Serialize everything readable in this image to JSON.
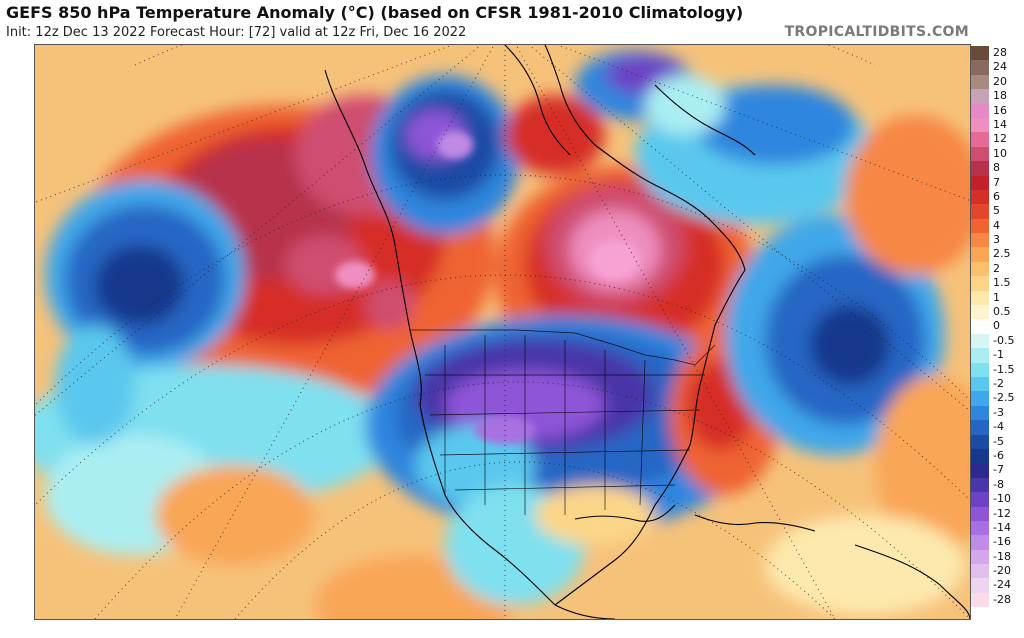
{
  "header": {
    "title": "GEFS 850 hPa Temperature Anomaly (°C) (based on CFSR 1981-2010 Climatology)",
    "subtitle": "Init: 12z Dec 13 2022   Forecast Hour: [72]   valid at 12z Fri, Dec 16 2022",
    "brand": "TROPICALTIDBITS.COM"
  },
  "colorbar": {
    "levels": [
      {
        "label": "28",
        "color": "#6b4a3a"
      },
      {
        "label": "24",
        "color": "#8a6a5e"
      },
      {
        "label": "20",
        "color": "#a88a80"
      },
      {
        "label": "18",
        "color": "#c7a3b8"
      },
      {
        "label": "16",
        "color": "#e48ac9"
      },
      {
        "label": "14",
        "color": "#ef8fbf"
      },
      {
        "label": "12",
        "color": "#e56a98"
      },
      {
        "label": "10",
        "color": "#cf4d70"
      },
      {
        "label": "8",
        "color": "#b8324c"
      },
      {
        "label": "7",
        "color": "#c4202c"
      },
      {
        "label": "6",
        "color": "#d62f27"
      },
      {
        "label": "5",
        "color": "#e4462a"
      },
      {
        "label": "4",
        "color": "#ef6430"
      },
      {
        "label": "3",
        "color": "#f78745"
      },
      {
        "label": "2.5",
        "color": "#f9a657"
      },
      {
        "label": "2",
        "color": "#fbc06c"
      },
      {
        "label": "1.5",
        "color": "#fcd688"
      },
      {
        "label": "1",
        "color": "#fde9ad"
      },
      {
        "label": "0.5",
        "color": "#fff4d0"
      },
      {
        "label": "0",
        "color": "#ffffff"
      },
      {
        "label": "-0.5",
        "color": "#d7f5f5"
      },
      {
        "label": "-1",
        "color": "#aaeef2"
      },
      {
        "label": "-1.5",
        "color": "#7fe0ef"
      },
      {
        "label": "-2",
        "color": "#5ac8ee"
      },
      {
        "label": "-2.5",
        "color": "#3fa7ea"
      },
      {
        "label": "-3",
        "color": "#2e86de"
      },
      {
        "label": "-4",
        "color": "#2566c5"
      },
      {
        "label": "-5",
        "color": "#1c4ba6"
      },
      {
        "label": "-6",
        "color": "#17388c"
      },
      {
        "label": "-7",
        "color": "#2b2b8f"
      },
      {
        "label": "-8",
        "color": "#4a36a8"
      },
      {
        "label": "-10",
        "color": "#6c43c6"
      },
      {
        "label": "-12",
        "color": "#8e55d8"
      },
      {
        "label": "-14",
        "color": "#a86fe0"
      },
      {
        "label": "-16",
        "color": "#c08ae6"
      },
      {
        "label": "-18",
        "color": "#d4a6ea"
      },
      {
        "label": "-20",
        "color": "#e3bfee"
      },
      {
        "label": "-24",
        "color": "#efd4f2"
      },
      {
        "label": "-28",
        "color": "#f9dce8"
      }
    ]
  }
}
